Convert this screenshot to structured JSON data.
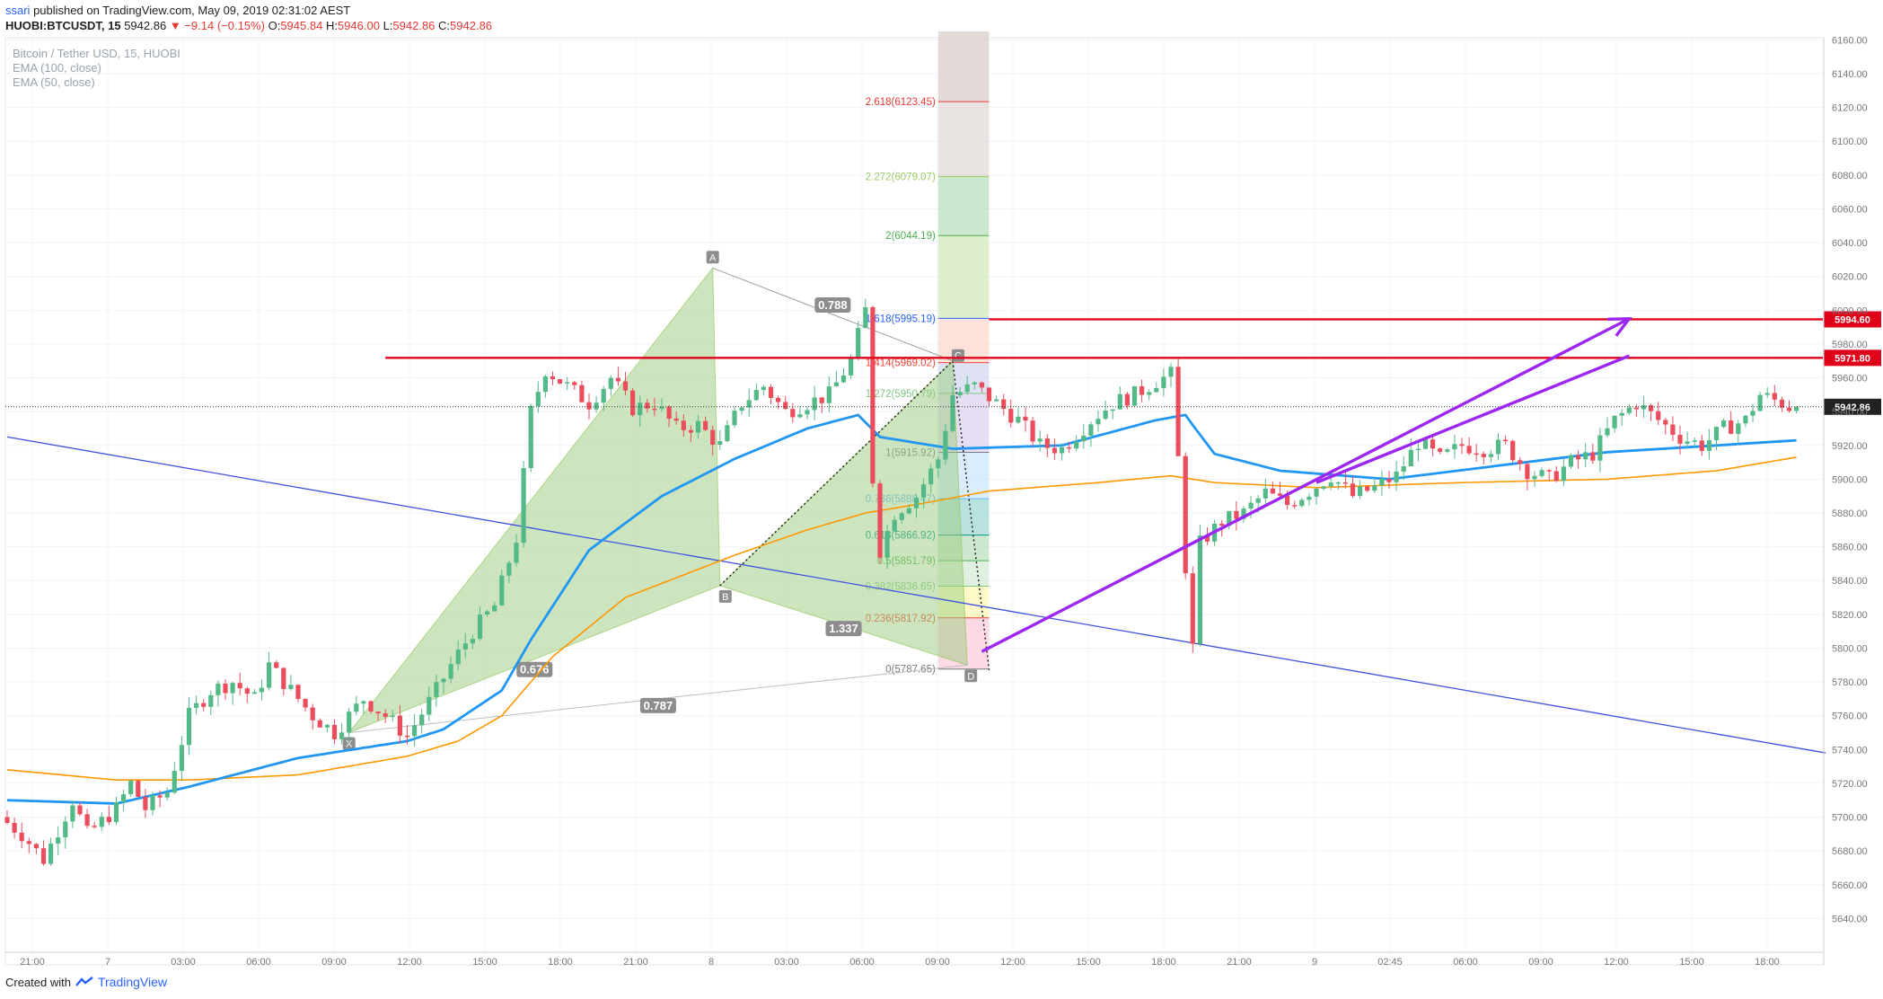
{
  "header": {
    "user": "ssari",
    "published": "published on TradingView.com, May 09, 2019 02:31:02 AEST",
    "symbol": "HUOBI:BTCUSDT, 15",
    "last": "5942.86",
    "change": "−9.14 (−0.15%)",
    "o_label": "O:",
    "o_val": "5945.84",
    "h_label": "H:",
    "h_val": "5946.00",
    "l_label": "L:",
    "l_val": "5942.86",
    "c_label": "C:",
    "c_val": "5942.86"
  },
  "legend": {
    "line1": "Bitcoin / Tether USD, 15, HUOBI",
    "line2": "EMA (100, close)",
    "line3": "EMA (50, close)"
  },
  "footer": {
    "created": "Created with",
    "brand": "TradingView"
  },
  "colors": {
    "up": "#53b987",
    "down": "#eb4d5c",
    "ema50": "#2196f3",
    "ema100": "#ff9800",
    "hline": "#e0001a",
    "arrow": "#9c27f0",
    "trendline": "#3f51e0",
    "pattern": "#9ccc80"
  },
  "chart_data": {
    "type": "candlestick",
    "symbol": "HUOBI:BTCUSDT",
    "interval": "15",
    "ylim": [
      5620,
      6165
    ],
    "yticks": [
      5640,
      5660,
      5680,
      5700,
      5720,
      5740,
      5760,
      5780,
      5800,
      5820,
      5840,
      5860,
      5880,
      5900,
      5920,
      5940,
      5960,
      5980,
      6000,
      6020,
      6040,
      6060,
      6080,
      6100,
      6120,
      6140,
      6160
    ],
    "xticks": [
      "21:00",
      "7",
      "03:00",
      "06:00",
      "09:00",
      "12:00",
      "15:00",
      "18:00",
      "21:00",
      "8",
      "03:00",
      "06:00",
      "09:00",
      "12:00",
      "15:00",
      "18:00",
      "21:00",
      "9",
      "02:45",
      "06:00",
      "09:00",
      "12:00",
      "15:00",
      "18:00"
    ],
    "price_anchors": [
      [
        0,
        5700
      ],
      [
        3,
        5690
      ],
      [
        6,
        5675
      ],
      [
        10,
        5710
      ],
      [
        12,
        5690
      ],
      [
        16,
        5705
      ],
      [
        18,
        5720
      ],
      [
        20,
        5705
      ],
      [
        23,
        5715
      ],
      [
        26,
        5760
      ],
      [
        29,
        5775
      ],
      [
        32,
        5780
      ],
      [
        35,
        5770
      ],
      [
        37,
        5790
      ],
      [
        40,
        5775
      ],
      [
        43,
        5760
      ],
      [
        46,
        5750
      ],
      [
        50,
        5770
      ],
      [
        53,
        5760
      ],
      [
        56,
        5748
      ],
      [
        60,
        5775
      ],
      [
        62,
        5790
      ],
      [
        65,
        5810
      ],
      [
        68,
        5825
      ],
      [
        71,
        5865
      ],
      [
        73,
        5940
      ],
      [
        75,
        5965
      ],
      [
        78,
        5955
      ],
      [
        81,
        5945
      ],
      [
        84,
        5960
      ],
      [
        87,
        5942
      ],
      [
        90,
        5945
      ],
      [
        93,
        5930
      ],
      [
        96,
        5932
      ],
      [
        99,
        5920
      ],
      [
        102,
        5945
      ],
      [
        105,
        5955
      ],
      [
        108,
        5940
      ],
      [
        111,
        5945
      ],
      [
        114,
        5950
      ],
      [
        117,
        5970
      ],
      [
        119,
        6000
      ],
      [
        120,
        5900
      ],
      [
        121,
        5858
      ],
      [
        123,
        5880
      ],
      [
        126,
        5890
      ],
      [
        129,
        5912
      ],
      [
        131,
        5950
      ],
      [
        134,
        5955
      ],
      [
        137,
        5945
      ],
      [
        140,
        5935
      ],
      [
        143,
        5920
      ],
      [
        146,
        5918
      ],
      [
        150,
        5935
      ],
      [
        153,
        5945
      ],
      [
        156,
        5950
      ],
      [
        159,
        5958
      ],
      [
        161,
        5962
      ],
      [
        162,
        5912
      ],
      [
        163,
        5848
      ],
      [
        164,
        5800
      ],
      [
        165,
        5862
      ],
      [
        168,
        5875
      ],
      [
        171,
        5880
      ],
      [
        174,
        5892
      ],
      [
        177,
        5885
      ],
      [
        180,
        5893
      ],
      [
        183,
        5902
      ],
      [
        186,
        5890
      ],
      [
        189,
        5895
      ],
      [
        192,
        5902
      ],
      [
        195,
        5922
      ],
      [
        198,
        5912
      ],
      [
        201,
        5920
      ],
      [
        204,
        5918
      ],
      [
        207,
        5920
      ],
      [
        210,
        5905
      ],
      [
        213,
        5900
      ],
      [
        216,
        5910
      ],
      [
        219,
        5915
      ],
      [
        222,
        5935
      ],
      [
        225,
        5945
      ],
      [
        228,
        5935
      ],
      [
        231,
        5925
      ],
      [
        234,
        5920
      ],
      [
        237,
        5930
      ],
      [
        240,
        5935
      ],
      [
        242,
        5950
      ],
      [
        245,
        5945
      ],
      [
        246,
        5942.86
      ]
    ],
    "ema50": [
      [
        0,
        5710
      ],
      [
        15,
        5708
      ],
      [
        25,
        5718
      ],
      [
        40,
        5735
      ],
      [
        55,
        5745
      ],
      [
        60,
        5752
      ],
      [
        68,
        5775
      ],
      [
        72,
        5805
      ],
      [
        80,
        5858
      ],
      [
        90,
        5890
      ],
      [
        100,
        5912
      ],
      [
        110,
        5930
      ],
      [
        117,
        5938
      ],
      [
        120,
        5925
      ],
      [
        130,
        5918
      ],
      [
        145,
        5920
      ],
      [
        158,
        5935
      ],
      [
        162,
        5938
      ],
      [
        163,
        5932
      ],
      [
        166,
        5915
      ],
      [
        175,
        5905
      ],
      [
        190,
        5900
      ],
      [
        205,
        5908
      ],
      [
        220,
        5916
      ],
      [
        235,
        5920
      ],
      [
        246,
        5923
      ]
    ],
    "ema100": [
      [
        0,
        5728
      ],
      [
        15,
        5722
      ],
      [
        25,
        5722
      ],
      [
        40,
        5725
      ],
      [
        55,
        5736
      ],
      [
        62,
        5745
      ],
      [
        68,
        5760
      ],
      [
        75,
        5795
      ],
      [
        85,
        5830
      ],
      [
        100,
        5855
      ],
      [
        110,
        5870
      ],
      [
        118,
        5880
      ],
      [
        125,
        5885
      ],
      [
        135,
        5893
      ],
      [
        150,
        5898
      ],
      [
        160,
        5902
      ],
      [
        166,
        5898
      ],
      [
        180,
        5895
      ],
      [
        200,
        5898
      ],
      [
        220,
        5900
      ],
      [
        235,
        5905
      ],
      [
        246,
        5913
      ]
    ],
    "horizontal_levels": [
      {
        "price": 5994.6,
        "label": "5994.60"
      },
      {
        "price": 5971.8,
        "label": "5971.80"
      }
    ],
    "current_price": {
      "price": 5942.86,
      "label": "5942.86"
    },
    "harmonic_pattern": {
      "points": [
        {
          "name": "X",
          "bar": 47,
          "price": 5750
        },
        {
          "name": "A",
          "bar": 97,
          "price": 6025
        },
        {
          "name": "B",
          "bar": 98,
          "price": 5837
        },
        {
          "name": "C",
          "bar": 130,
          "price": 5970
        },
        {
          "name": "D",
          "bar": 132,
          "price": 5790
        }
      ],
      "ratios": [
        "0.788",
        "1.337",
        "0.676",
        "0.787"
      ]
    },
    "fib_levels": [
      {
        "label": "0(5787.65)",
        "price": 5787.65,
        "color": "#787b86"
      },
      {
        "label": "0.236(5817.92)",
        "price": 5817.92,
        "color": "#f44336"
      },
      {
        "label": "0.382(5836.65)",
        "price": 5836.65,
        "color": "#81c784"
      },
      {
        "label": "0.5(5851.79)",
        "price": 5851.79,
        "color": "#4caf50"
      },
      {
        "label": "0.618(5866.92)",
        "price": 5866.92,
        "color": "#009688"
      },
      {
        "label": "0.786(5888.47)",
        "price": 5888.47,
        "color": "#64b5f6"
      },
      {
        "label": "1(5915.92)",
        "price": 5915.92,
        "color": "#787b86"
      },
      {
        "label": "1.272(5950.79)",
        "price": 5950.79,
        "color": "#81c784"
      },
      {
        "label": "1.414(5969.02)",
        "price": 5969.02,
        "color": "#f44336"
      },
      {
        "label": "1.618(5995.19)",
        "price": 5995.19,
        "color": "#2962ff"
      },
      {
        "label": "2(6044.19)",
        "price": 6044.19,
        "color": "#4caf50"
      },
      {
        "label": "2.272(6079.07)",
        "price": 6079.07,
        "color": "#9ccc65"
      },
      {
        "label": "2.618(6123.45)",
        "price": 6123.45,
        "color": "#e53935"
      }
    ],
    "trend_line": {
      "from": {
        "bar": 0,
        "price": 5925
      },
      "to": {
        "bar": 250,
        "price": 5738
      }
    },
    "projection_arrow": {
      "from": {
        "bar": 134,
        "price": 5798
      },
      "to": {
        "bar": 223,
        "price": 5995
      }
    },
    "support_arrow": {
      "from": {
        "bar": 180,
        "price": 5898
      },
      "to": {
        "bar": 223,
        "price": 5973
      }
    }
  }
}
